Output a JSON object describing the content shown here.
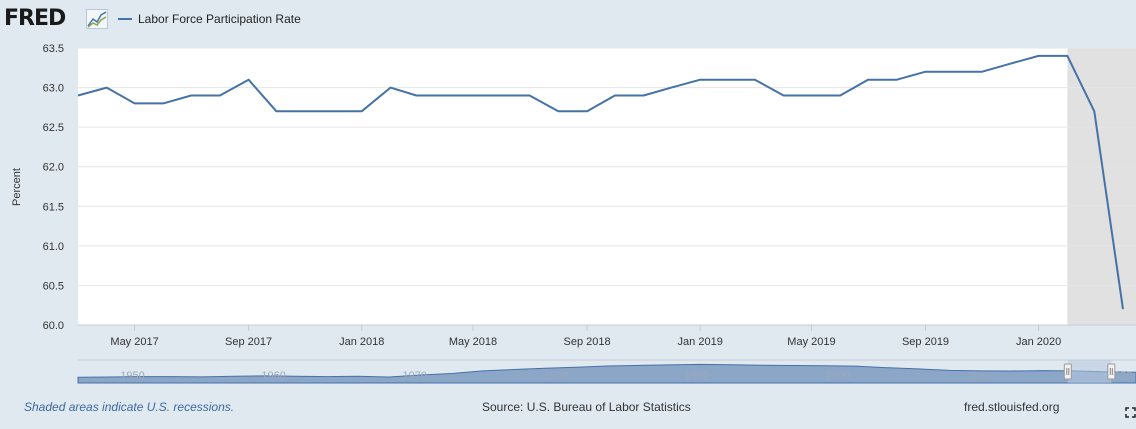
{
  "header": {
    "logo": "FRED",
    "legend_label": "Labor Force Participation Rate"
  },
  "footer": {
    "recession_note": "Shaded areas indicate U.S. recessions.",
    "source": "Source: U.S. Bureau of Labor Statistics",
    "site": "fred.stlouisfed.org"
  },
  "colors": {
    "series": "#4572a7",
    "recession": "#e1e1e1",
    "background": "#e1e9f0",
    "plot_background": "#ffffff"
  },
  "chart_data": {
    "type": "line",
    "title": "",
    "xlabel": "",
    "ylabel": "Percent",
    "ylim": [
      60.0,
      63.5
    ],
    "yticks": [
      "60.0",
      "60.5",
      "61.0",
      "61.5",
      "62.0",
      "62.5",
      "63.0",
      "63.5"
    ],
    "xlim": [
      "2017-03-01",
      "2020-04-15"
    ],
    "xticks": [
      {
        "date": "2017-05-01",
        "label": "May 2017"
      },
      {
        "date": "2017-09-01",
        "label": "Sep 2017"
      },
      {
        "date": "2018-01-01",
        "label": "Jan 2018"
      },
      {
        "date": "2018-05-01",
        "label": "May 2018"
      },
      {
        "date": "2018-09-01",
        "label": "Sep 2018"
      },
      {
        "date": "2019-01-01",
        "label": "Jan 2019"
      },
      {
        "date": "2019-05-01",
        "label": "May 2019"
      },
      {
        "date": "2019-09-01",
        "label": "Sep 2019"
      },
      {
        "date": "2020-01-01",
        "label": "Jan 2020"
      }
    ],
    "recessions": [
      {
        "start": "2020-02-01",
        "end": "2020-04-15"
      }
    ],
    "grid": true,
    "legend": "top-left",
    "series": [
      {
        "name": "Labor Force Participation Rate",
        "x": [
          "2017-03-01",
          "2017-04-01",
          "2017-05-01",
          "2017-06-01",
          "2017-07-01",
          "2017-08-01",
          "2017-09-01",
          "2017-10-01",
          "2017-11-01",
          "2017-12-01",
          "2018-01-01",
          "2018-02-01",
          "2018-03-01",
          "2018-04-01",
          "2018-05-01",
          "2018-06-01",
          "2018-07-01",
          "2018-08-01",
          "2018-09-01",
          "2018-10-01",
          "2018-11-01",
          "2018-12-01",
          "2019-01-01",
          "2019-02-01",
          "2019-03-01",
          "2019-04-01",
          "2019-05-01",
          "2019-06-01",
          "2019-07-01",
          "2019-08-01",
          "2019-09-01",
          "2019-10-01",
          "2019-11-01",
          "2019-12-01",
          "2020-01-01",
          "2020-02-01",
          "2020-03-01",
          "2020-04-01"
        ],
        "values": [
          62.9,
          63.0,
          62.8,
          62.8,
          62.9,
          62.9,
          63.1,
          62.7,
          62.7,
          62.7,
          62.7,
          63.0,
          62.9,
          62.9,
          62.9,
          62.9,
          62.9,
          62.7,
          62.7,
          62.9,
          62.9,
          63.0,
          63.1,
          63.1,
          63.1,
          62.9,
          62.9,
          62.9,
          63.1,
          63.1,
          63.2,
          63.2,
          63.2,
          63.3,
          63.4,
          63.4,
          62.7,
          60.2
        ]
      }
    ],
    "navigator": {
      "labels": [
        "1950",
        "1960",
        "1970",
        "1980",
        "1990",
        "2000",
        "2010",
        "2020"
      ],
      "label_years": [
        1950,
        1960,
        1970,
        1980,
        1990,
        2000,
        2010,
        2020
      ],
      "year_range": [
        1947,
        2022
      ],
      "values": [
        58.8,
        58.9,
        59.2,
        59.2,
        59.0,
        59.4,
        59.6,
        59.4,
        59.2,
        59.4,
        58.9,
        60.2,
        61.2,
        62.9,
        63.8,
        64.6,
        65.3,
        66.1,
        66.5,
        66.8,
        67.1,
        66.9,
        66.6,
        66.4,
        66.2,
        66.0,
        65.0,
        64.2,
        63.2,
        62.9,
        62.8,
        63.1,
        62.9,
        62.3,
        62.0
      ],
      "selected_range": [
        "2017-03-01",
        "2020-04-15"
      ]
    }
  }
}
